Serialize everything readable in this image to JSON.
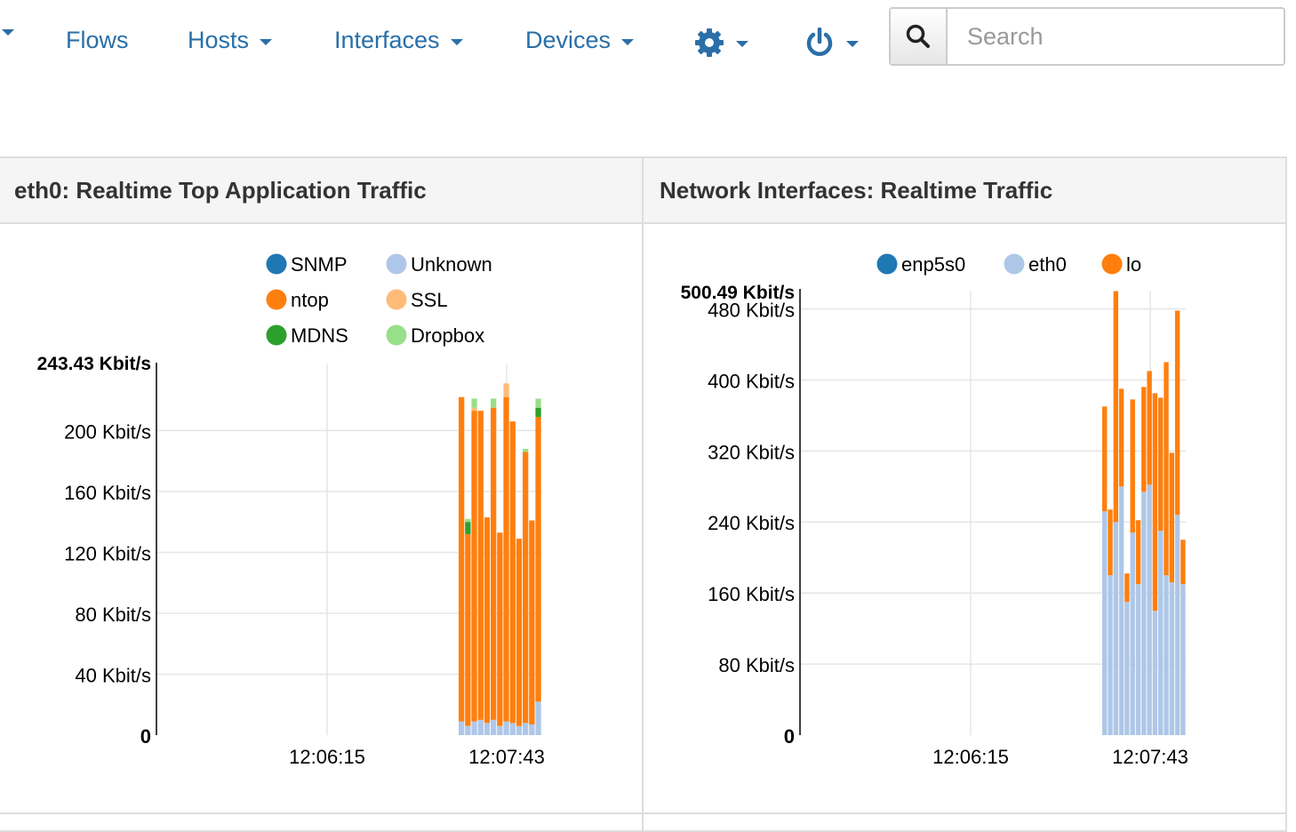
{
  "nav": {
    "items": [
      {
        "label": "Flows",
        "caret": false
      },
      {
        "label": "Hosts",
        "caret": true
      },
      {
        "label": "Interfaces",
        "caret": true
      },
      {
        "label": "Devices",
        "caret": true
      }
    ],
    "settings_icon": "gear-icon",
    "power_icon": "power-icon",
    "link_color": "#2a6fa8"
  },
  "search": {
    "placeholder": "Search",
    "icon": "search-icon"
  },
  "panels": {
    "left_title": "eth0: Realtime Top Application Traffic",
    "right_title": "Network Interfaces: Realtime Traffic"
  },
  "chart_data": [
    {
      "type": "bar",
      "stacked": true,
      "title": "eth0: Realtime Top Application Traffic",
      "y_unit": "Kbit/s",
      "ylim": [
        0,
        243.43
      ],
      "y_max_label": "243.43 Kbit/s",
      "y_ticks": [
        0,
        40,
        80,
        120,
        160,
        200
      ],
      "y_tick_labels": [
        "0",
        "40 Kbit/s",
        "80 Kbit/s",
        "120 Kbit/s",
        "160 Kbit/s",
        "200 Kbit/s"
      ],
      "x_ticks": [
        "12:06:15",
        "12:07:43"
      ],
      "grid": true,
      "legend_position": "top",
      "legend": [
        {
          "name": "SNMP",
          "color": "#1f77b4"
        },
        {
          "name": "Unknown",
          "color": "#aec7e8"
        },
        {
          "name": "ntop",
          "color": "#ff7f0e"
        },
        {
          "name": "SSL",
          "color": "#ffbb78"
        },
        {
          "name": "MDNS",
          "color": "#2ca02c"
        },
        {
          "name": "Dropbox",
          "color": "#98df8a"
        }
      ],
      "series": [
        {
          "name": "Unknown",
          "color": "#aec7e8",
          "values": [
            9,
            6,
            9,
            10,
            8,
            10,
            6,
            9,
            8,
            6,
            8,
            7,
            22
          ]
        },
        {
          "name": "ntop",
          "color": "#ff7f0e",
          "values": [
            213,
            126,
            204,
            203,
            135,
            205,
            127,
            213,
            198,
            123,
            178,
            134,
            187
          ]
        },
        {
          "name": "SSL",
          "color": "#ffbb78",
          "values": [
            0,
            0,
            2,
            0,
            0,
            0,
            0,
            9,
            0,
            0,
            0,
            0,
            0
          ]
        },
        {
          "name": "MDNS",
          "color": "#2ca02c",
          "values": [
            0,
            8,
            0,
            0,
            0,
            0,
            0,
            0,
            0,
            0,
            0,
            0,
            6
          ]
        },
        {
          "name": "Dropbox",
          "color": "#98df8a",
          "values": [
            0,
            2,
            6,
            0,
            0,
            6,
            0,
            0,
            0,
            0,
            2,
            0,
            6
          ]
        }
      ]
    },
    {
      "type": "bar",
      "stacked": true,
      "title": "Network Interfaces: Realtime Traffic",
      "y_unit": "Kbit/s",
      "ylim": [
        0,
        500.49
      ],
      "y_max_label": "500.49 Kbit/s",
      "y_ticks": [
        0,
        80,
        160,
        240,
        320,
        400,
        480
      ],
      "y_tick_labels": [
        "0",
        "80 Kbit/s",
        "160 Kbit/s",
        "240 Kbit/s",
        "320 Kbit/s",
        "400 Kbit/s",
        "480 Kbit/s"
      ],
      "x_ticks": [
        "12:06:15",
        "12:07:43"
      ],
      "grid": true,
      "legend_position": "top",
      "legend": [
        {
          "name": "enp5s0",
          "color": "#1f77b4"
        },
        {
          "name": "eth0",
          "color": "#aec7e8"
        },
        {
          "name": "lo",
          "color": "#ff7f0e"
        }
      ],
      "series": [
        {
          "name": "enp5s0",
          "color": "#1f77b4",
          "values": [
            0,
            0,
            0,
            0,
            0,
            0,
            0,
            0,
            0,
            0,
            0,
            0,
            0,
            0,
            0
          ]
        },
        {
          "name": "eth0",
          "color": "#aec7e8",
          "values": [
            252,
            180,
            240,
            280,
            150,
            228,
            170,
            274,
            282,
            140,
            230,
            180,
            172,
            248,
            170
          ]
        },
        {
          "name": "lo",
          "color": "#ff7f0e",
          "values": [
            118,
            74,
            260,
            110,
            32,
            150,
            72,
            118,
            128,
            245,
            150,
            240,
            146,
            230,
            50
          ]
        }
      ]
    }
  ]
}
